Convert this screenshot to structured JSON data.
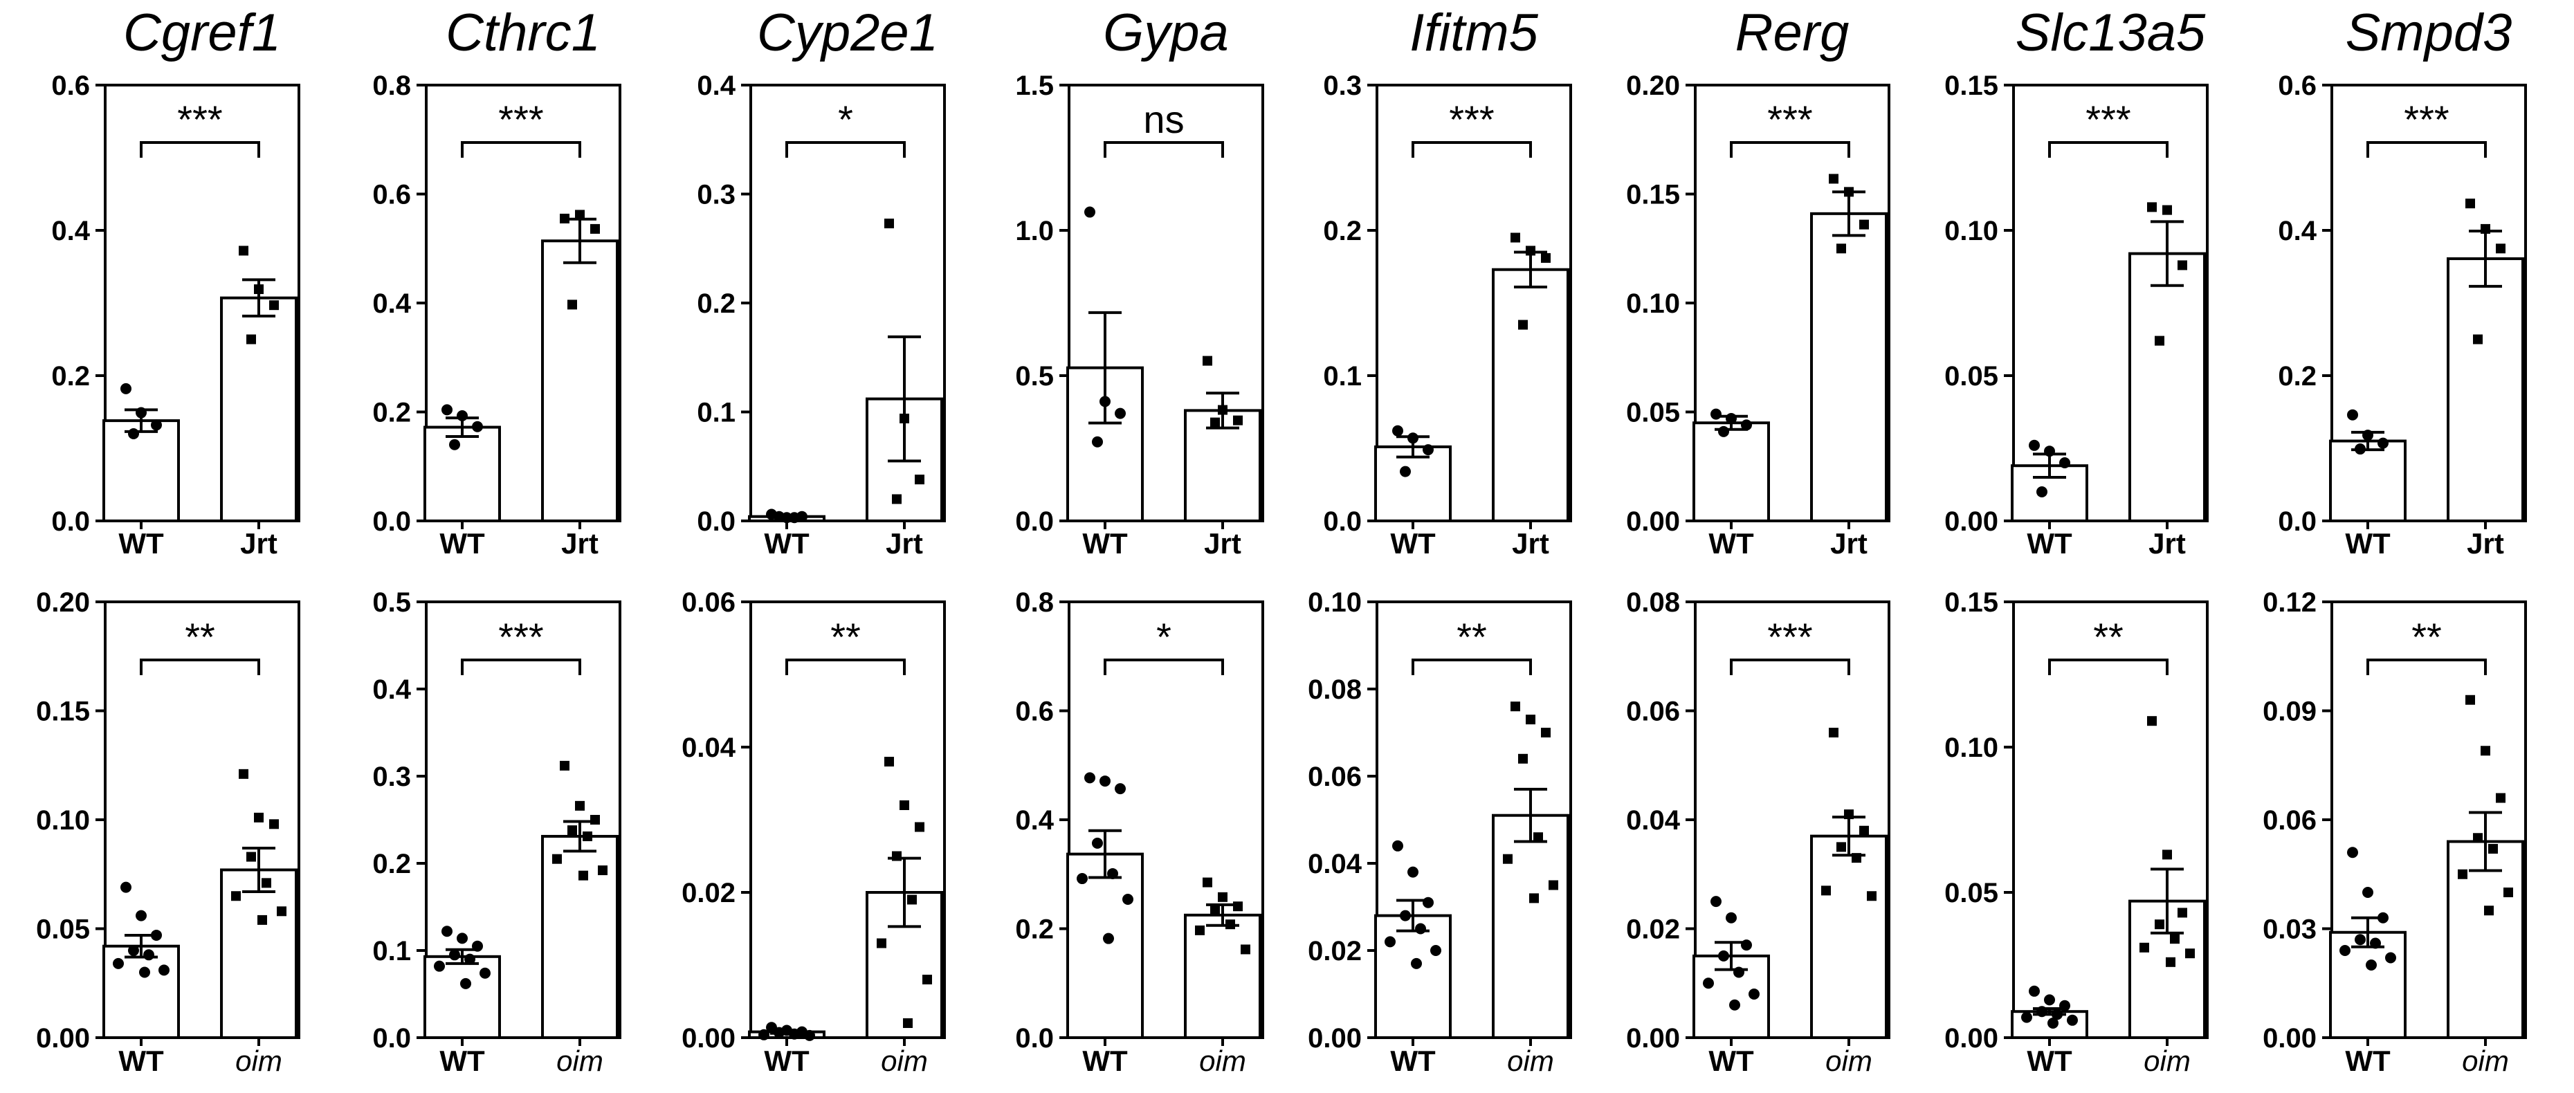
{
  "figure": {
    "rows": [
      {
        "group_labels": [
          "WT",
          "Jrt"
        ],
        "italic_second": false
      },
      {
        "group_labels": [
          "WT",
          "oim"
        ],
        "italic_second": true
      }
    ]
  },
  "chart_data": [
    {
      "type": "bar",
      "gene": "Cgref1",
      "comparison": [
        "WT",
        "Jrt"
      ],
      "significance": "***",
      "ylim": [
        0,
        0.6
      ],
      "yticks": [
        "0.0",
        "0.2",
        "0.4",
        "0.6"
      ],
      "groups": [
        {
          "name": "WT",
          "mean": 0.138,
          "sem": 0.015,
          "points": [
            0.182,
            0.149,
            0.132,
            0.12
          ]
        },
        {
          "name": "Jrt",
          "mean": 0.307,
          "sem": 0.025,
          "points": [
            0.372,
            0.319,
            0.297,
            0.25
          ]
        }
      ]
    },
    {
      "type": "bar",
      "gene": "Cthrc1",
      "comparison": [
        "WT",
        "Jrt"
      ],
      "significance": "***",
      "ylim": [
        0,
        0.8
      ],
      "yticks": [
        "0.0",
        "0.2",
        "0.4",
        "0.6",
        "0.8"
      ],
      "groups": [
        {
          "name": "WT",
          "mean": 0.172,
          "sem": 0.017,
          "points": [
            0.204,
            0.193,
            0.173,
            0.14
          ]
        },
        {
          "name": "Jrt",
          "mean": 0.514,
          "sem": 0.04,
          "points": [
            0.555,
            0.562,
            0.536,
            0.397
          ]
        }
      ]
    },
    {
      "type": "bar",
      "gene": "Cyp2e1",
      "comparison": [
        "WT",
        "Jrt"
      ],
      "significance": "*",
      "ylim": [
        0,
        0.4
      ],
      "yticks": [
        "0.0",
        "0.1",
        "0.2",
        "0.3",
        "0.4"
      ],
      "groups": [
        {
          "name": "WT",
          "mean": 0.004,
          "sem": 0.001,
          "points": [
            0.006,
            0.003,
            0.004,
            0.004,
            0.003
          ]
        },
        {
          "name": "Jrt",
          "mean": 0.112,
          "sem": 0.057,
          "points": [
            0.273,
            0.094,
            0.038,
            0.02
          ]
        }
      ]
    },
    {
      "type": "bar",
      "gene": "Gypa",
      "comparison": [
        "WT",
        "Jrt"
      ],
      "significance": "ns",
      "ylim": [
        0,
        1.5
      ],
      "yticks": [
        "0.0",
        "0.5",
        "1.0",
        "1.5"
      ],
      "groups": [
        {
          "name": "WT",
          "mean": 0.527,
          "sem": 0.19,
          "points": [
            1.063,
            0.411,
            0.37,
            0.272
          ]
        },
        {
          "name": "Jrt",
          "mean": 0.38,
          "sem": 0.06,
          "points": [
            0.551,
            0.382,
            0.346,
            0.339
          ]
        }
      ]
    },
    {
      "type": "bar",
      "gene": "Ifitm5",
      "comparison": [
        "WT",
        "Jrt"
      ],
      "significance": "***",
      "ylim": [
        0,
        0.3
      ],
      "yticks": [
        "0.0",
        "0.1",
        "0.2",
        "0.3"
      ],
      "groups": [
        {
          "name": "WT",
          "mean": 0.051,
          "sem": 0.007,
          "points": [
            0.062,
            0.057,
            0.049,
            0.034
          ]
        },
        {
          "name": "Jrt",
          "mean": 0.173,
          "sem": 0.012,
          "points": [
            0.195,
            0.186,
            0.181,
            0.135
          ]
        }
      ]
    },
    {
      "type": "bar",
      "gene": "Rerg",
      "comparison": [
        "WT",
        "Jrt"
      ],
      "significance": "***",
      "ylim": [
        0,
        0.2
      ],
      "yticks": [
        "0.00",
        "0.05",
        "0.10",
        "0.15",
        "0.20"
      ],
      "groups": [
        {
          "name": "WT",
          "mean": 0.045,
          "sem": 0.003,
          "points": [
            0.049,
            0.047,
            0.044,
            0.041
          ]
        },
        {
          "name": "Jrt",
          "mean": 0.141,
          "sem": 0.01,
          "points": [
            0.157,
            0.151,
            0.136,
            0.125
          ]
        }
      ]
    },
    {
      "type": "bar",
      "gene": "Slc13a5",
      "comparison": [
        "WT",
        "Jrt"
      ],
      "significance": "***",
      "ylim": [
        0,
        0.15
      ],
      "yticks": [
        "0.00",
        "0.05",
        "0.10",
        "0.15"
      ],
      "groups": [
        {
          "name": "WT",
          "mean": 0.019,
          "sem": 0.004,
          "points": [
            0.026,
            0.024,
            0.02,
            0.01
          ]
        },
        {
          "name": "Jrt",
          "mean": 0.092,
          "sem": 0.011,
          "points": [
            0.108,
            0.107,
            0.088,
            0.062
          ]
        }
      ]
    },
    {
      "type": "bar",
      "gene": "Smpd3",
      "comparison": [
        "WT",
        "Jrt"
      ],
      "significance": "***",
      "ylim": [
        0,
        0.6
      ],
      "yticks": [
        "0.0",
        "0.2",
        "0.4",
        "0.6"
      ],
      "groups": [
        {
          "name": "WT",
          "mean": 0.11,
          "sem": 0.012,
          "points": [
            0.146,
            0.118,
            0.107,
            0.099
          ]
        },
        {
          "name": "Jrt",
          "mean": 0.361,
          "sem": 0.038,
          "points": [
            0.437,
            0.402,
            0.375,
            0.25
          ]
        }
      ]
    },
    {
      "type": "bar",
      "gene": "Cgref1",
      "comparison": [
        "WT",
        "oim"
      ],
      "significance": "**",
      "ylim": [
        0,
        0.2
      ],
      "yticks": [
        "0.00",
        "0.05",
        "0.10",
        "0.15",
        "0.20"
      ],
      "groups": [
        {
          "name": "WT",
          "mean": 0.042,
          "sem": 0.005,
          "points": [
            0.069,
            0.056,
            0.047,
            0.04,
            0.038,
            0.034,
            0.031,
            0.03
          ]
        },
        {
          "name": "oim",
          "mean": 0.077,
          "sem": 0.01,
          "points": [
            0.121,
            0.101,
            0.098,
            0.083,
            0.071,
            0.065,
            0.058,
            0.054
          ]
        }
      ]
    },
    {
      "type": "bar",
      "gene": "Cthrc1",
      "comparison": [
        "WT",
        "oim"
      ],
      "significance": "***",
      "ylim": [
        0,
        0.5
      ],
      "yticks": [
        "0.0",
        "0.1",
        "0.2",
        "0.3",
        "0.4",
        "0.5"
      ],
      "groups": [
        {
          "name": "WT",
          "mean": 0.093,
          "sem": 0.008,
          "points": [
            0.122,
            0.114,
            0.105,
            0.095,
            0.09,
            0.082,
            0.074,
            0.062
          ]
        },
        {
          "name": "oim",
          "mean": 0.231,
          "sem": 0.017,
          "points": [
            0.312,
            0.266,
            0.25,
            0.238,
            0.231,
            0.205,
            0.192,
            0.186
          ]
        }
      ]
    },
    {
      "type": "bar",
      "gene": "Cyp2e1",
      "comparison": [
        "WT",
        "oim"
      ],
      "significance": "**",
      "ylim": [
        0,
        0.06
      ],
      "yticks": [
        "0.00",
        "0.02",
        "0.04",
        "0.06"
      ],
      "groups": [
        {
          "name": "WT",
          "mean": 0.0008,
          "sem": 0.0002,
          "points": [
            0.0014,
            0.001,
            0.0008,
            0.0007,
            0.0005,
            0.0004,
            0.0003
          ]
        },
        {
          "name": "oim",
          "mean": 0.02,
          "sem": 0.0047,
          "points": [
            0.038,
            0.032,
            0.029,
            0.025,
            0.019,
            0.013,
            0.008,
            0.002
          ]
        }
      ]
    },
    {
      "type": "bar",
      "gene": "Gypa",
      "comparison": [
        "WT",
        "oim"
      ],
      "significance": "*",
      "ylim": [
        0,
        0.8
      ],
      "yticks": [
        "0.0",
        "0.2",
        "0.4",
        "0.6",
        "0.8"
      ],
      "groups": [
        {
          "name": "WT",
          "mean": 0.337,
          "sem": 0.043,
          "points": [
            0.477,
            0.471,
            0.457,
            0.357,
            0.301,
            0.292,
            0.254,
            0.182
          ]
        },
        {
          "name": "oim",
          "mean": 0.225,
          "sem": 0.019,
          "points": [
            0.285,
            0.258,
            0.241,
            0.236,
            0.208,
            0.197,
            0.162
          ]
        }
      ]
    },
    {
      "type": "bar",
      "gene": "Ifitm5",
      "comparison": [
        "WT",
        "oim"
      ],
      "significance": "**",
      "ylim": [
        0,
        0.1
      ],
      "yticks": [
        "0.00",
        "0.02",
        "0.04",
        "0.06",
        "0.08",
        "0.10"
      ],
      "groups": [
        {
          "name": "WT",
          "mean": 0.028,
          "sem": 0.0035,
          "points": [
            0.044,
            0.038,
            0.031,
            0.028,
            0.025,
            0.022,
            0.02,
            0.017
          ]
        },
        {
          "name": "oim",
          "mean": 0.051,
          "sem": 0.006,
          "points": [
            0.076,
            0.073,
            0.07,
            0.064,
            0.046,
            0.041,
            0.035,
            0.032
          ]
        }
      ]
    },
    {
      "type": "bar",
      "gene": "Rerg",
      "comparison": [
        "WT",
        "oim"
      ],
      "significance": "***",
      "ylim": [
        0,
        0.08
      ],
      "yticks": [
        "0.00",
        "0.02",
        "0.04",
        "0.06",
        "0.08"
      ],
      "groups": [
        {
          "name": "WT",
          "mean": 0.015,
          "sem": 0.0025,
          "points": [
            0.025,
            0.022,
            0.017,
            0.015,
            0.012,
            0.01,
            0.008,
            0.006
          ]
        },
        {
          "name": "oim",
          "mean": 0.037,
          "sem": 0.0035,
          "points": [
            0.056,
            0.041,
            0.038,
            0.035,
            0.033,
            0.027,
            0.026
          ]
        }
      ]
    },
    {
      "type": "bar",
      "gene": "Slc13a5",
      "comparison": [
        "WT",
        "oim"
      ],
      "significance": "**",
      "ylim": [
        0,
        0.15
      ],
      "yticks": [
        "0.00",
        "0.05",
        "0.10",
        "0.15"
      ],
      "groups": [
        {
          "name": "WT",
          "mean": 0.009,
          "sem": 0.001,
          "points": [
            0.016,
            0.013,
            0.011,
            0.009,
            0.008,
            0.007,
            0.006,
            0.005
          ]
        },
        {
          "name": "oim",
          "mean": 0.047,
          "sem": 0.011,
          "points": [
            0.109,
            0.063,
            0.043,
            0.039,
            0.034,
            0.031,
            0.029,
            0.026
          ]
        }
      ]
    },
    {
      "type": "bar",
      "gene": "Smpd3",
      "comparison": [
        "WT",
        "oim"
      ],
      "significance": "**",
      "ylim": [
        0,
        0.12
      ],
      "yticks": [
        "0.00",
        "0.03",
        "0.06",
        "0.09",
        "0.12"
      ],
      "groups": [
        {
          "name": "WT",
          "mean": 0.029,
          "sem": 0.004,
          "points": [
            0.051,
            0.04,
            0.033,
            0.027,
            0.026,
            0.024,
            0.022,
            0.02
          ]
        },
        {
          "name": "oim",
          "mean": 0.054,
          "sem": 0.008,
          "points": [
            0.093,
            0.079,
            0.066,
            0.055,
            0.052,
            0.045,
            0.04,
            0.035
          ]
        }
      ]
    }
  ]
}
